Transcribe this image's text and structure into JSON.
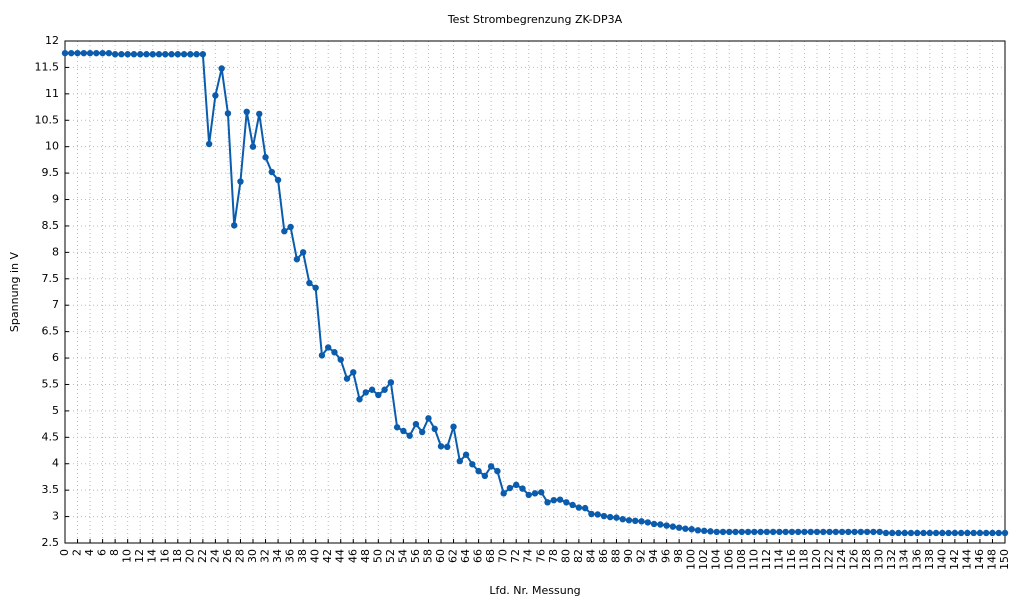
{
  "chart_data": {
    "type": "line",
    "title": "Test Strombegrenzung ZK-DP3A",
    "xlabel": "Lfd. Nr. Messung",
    "ylabel": "Spannung in V",
    "x": [
      0,
      1,
      2,
      3,
      4,
      5,
      6,
      7,
      8,
      9,
      10,
      11,
      12,
      13,
      14,
      15,
      16,
      17,
      18,
      19,
      20,
      21,
      22,
      23,
      24,
      25,
      26,
      27,
      28,
      29,
      30,
      31,
      32,
      33,
      34,
      35,
      36,
      37,
      38,
      39,
      40,
      41,
      42,
      43,
      44,
      45,
      46,
      47,
      48,
      49,
      50,
      51,
      52,
      53,
      54,
      55,
      56,
      57,
      58,
      59,
      60,
      61,
      62,
      63,
      64,
      65,
      66,
      67,
      68,
      69,
      70,
      71,
      72,
      73,
      74,
      75,
      76,
      77,
      78,
      79,
      80,
      81,
      82,
      83,
      84,
      85,
      86,
      87,
      88,
      89,
      90,
      91,
      92,
      93,
      94,
      95,
      96,
      97,
      98,
      99,
      100,
      101,
      102,
      103,
      104,
      105,
      106,
      107,
      108,
      109,
      110,
      111,
      112,
      113,
      114,
      115,
      116,
      117,
      118,
      119,
      120,
      121,
      122,
      123,
      124,
      125,
      126,
      127,
      128,
      129,
      130,
      131,
      132,
      133,
      134,
      135,
      136,
      137,
      138,
      139,
      140,
      141,
      142,
      143,
      144,
      145,
      146,
      147,
      148,
      149,
      150
    ],
    "series": [
      {
        "name": "Spannung",
        "color": "#0b5cad",
        "values": [
          11.77,
          11.77,
          11.77,
          11.77,
          11.77,
          11.77,
          11.77,
          11.77,
          11.75,
          11.75,
          11.75,
          11.75,
          11.75,
          11.75,
          11.75,
          11.75,
          11.75,
          11.75,
          11.75,
          11.75,
          11.75,
          11.75,
          11.75,
          10.05,
          10.97,
          11.48,
          10.63,
          8.51,
          9.34,
          10.66,
          10.0,
          10.62,
          9.8,
          9.52,
          9.37,
          8.4,
          8.48,
          7.87,
          8.0,
          7.42,
          7.33,
          6.05,
          6.2,
          6.11,
          5.97,
          5.61,
          5.73,
          5.22,
          5.35,
          5.4,
          5.3,
          5.4,
          5.54,
          4.69,
          4.62,
          4.53,
          4.75,
          4.6,
          4.86,
          4.66,
          4.33,
          4.32,
          4.7,
          4.05,
          4.17,
          3.99,
          3.86,
          3.77,
          3.95,
          3.86,
          3.44,
          3.54,
          3.6,
          3.53,
          3.41,
          3.44,
          3.46,
          3.27,
          3.31,
          3.32,
          3.27,
          3.22,
          3.17,
          3.16,
          3.05,
          3.04,
          3.01,
          2.99,
          2.98,
          2.95,
          2.93,
          2.92,
          2.91,
          2.89,
          2.86,
          2.85,
          2.83,
          2.81,
          2.79,
          2.77,
          2.76,
          2.74,
          2.73,
          2.72,
          2.71,
          2.71,
          2.71,
          2.71,
          2.71,
          2.71,
          2.71,
          2.71,
          2.71,
          2.71,
          2.71,
          2.71,
          2.71,
          2.71,
          2.71,
          2.71,
          2.71,
          2.71,
          2.71,
          2.71,
          2.71,
          2.71,
          2.71,
          2.71,
          2.71,
          2.71,
          2.71,
          2.69,
          2.69,
          2.69,
          2.69,
          2.69,
          2.69,
          2.69,
          2.69,
          2.69,
          2.69,
          2.69,
          2.69,
          2.69,
          2.69,
          2.69,
          2.69,
          2.69,
          2.69,
          2.69,
          2.69
        ]
      }
    ],
    "xlim": [
      0,
      150
    ],
    "xticks": [
      0,
      2,
      4,
      6,
      8,
      10,
      12,
      14,
      16,
      18,
      20,
      22,
      24,
      26,
      28,
      30,
      32,
      34,
      36,
      38,
      40,
      42,
      44,
      46,
      48,
      50,
      52,
      54,
      56,
      58,
      60,
      62,
      64,
      66,
      68,
      70,
      72,
      74,
      76,
      78,
      80,
      82,
      84,
      86,
      88,
      90,
      92,
      94,
      96,
      98,
      100,
      102,
      104,
      106,
      108,
      110,
      112,
      114,
      116,
      118,
      120,
      122,
      124,
      126,
      128,
      130,
      132,
      134,
      136,
      138,
      140,
      142,
      144,
      146,
      148,
      150
    ],
    "ylim": [
      2.5,
      12
    ],
    "yticks": [
      2.5,
      3,
      3.5,
      4,
      4.5,
      5,
      5.5,
      6,
      6.5,
      7,
      7.5,
      8,
      8.5,
      9,
      9.5,
      10,
      10.5,
      11,
      11.5,
      12
    ],
    "grid": true
  }
}
